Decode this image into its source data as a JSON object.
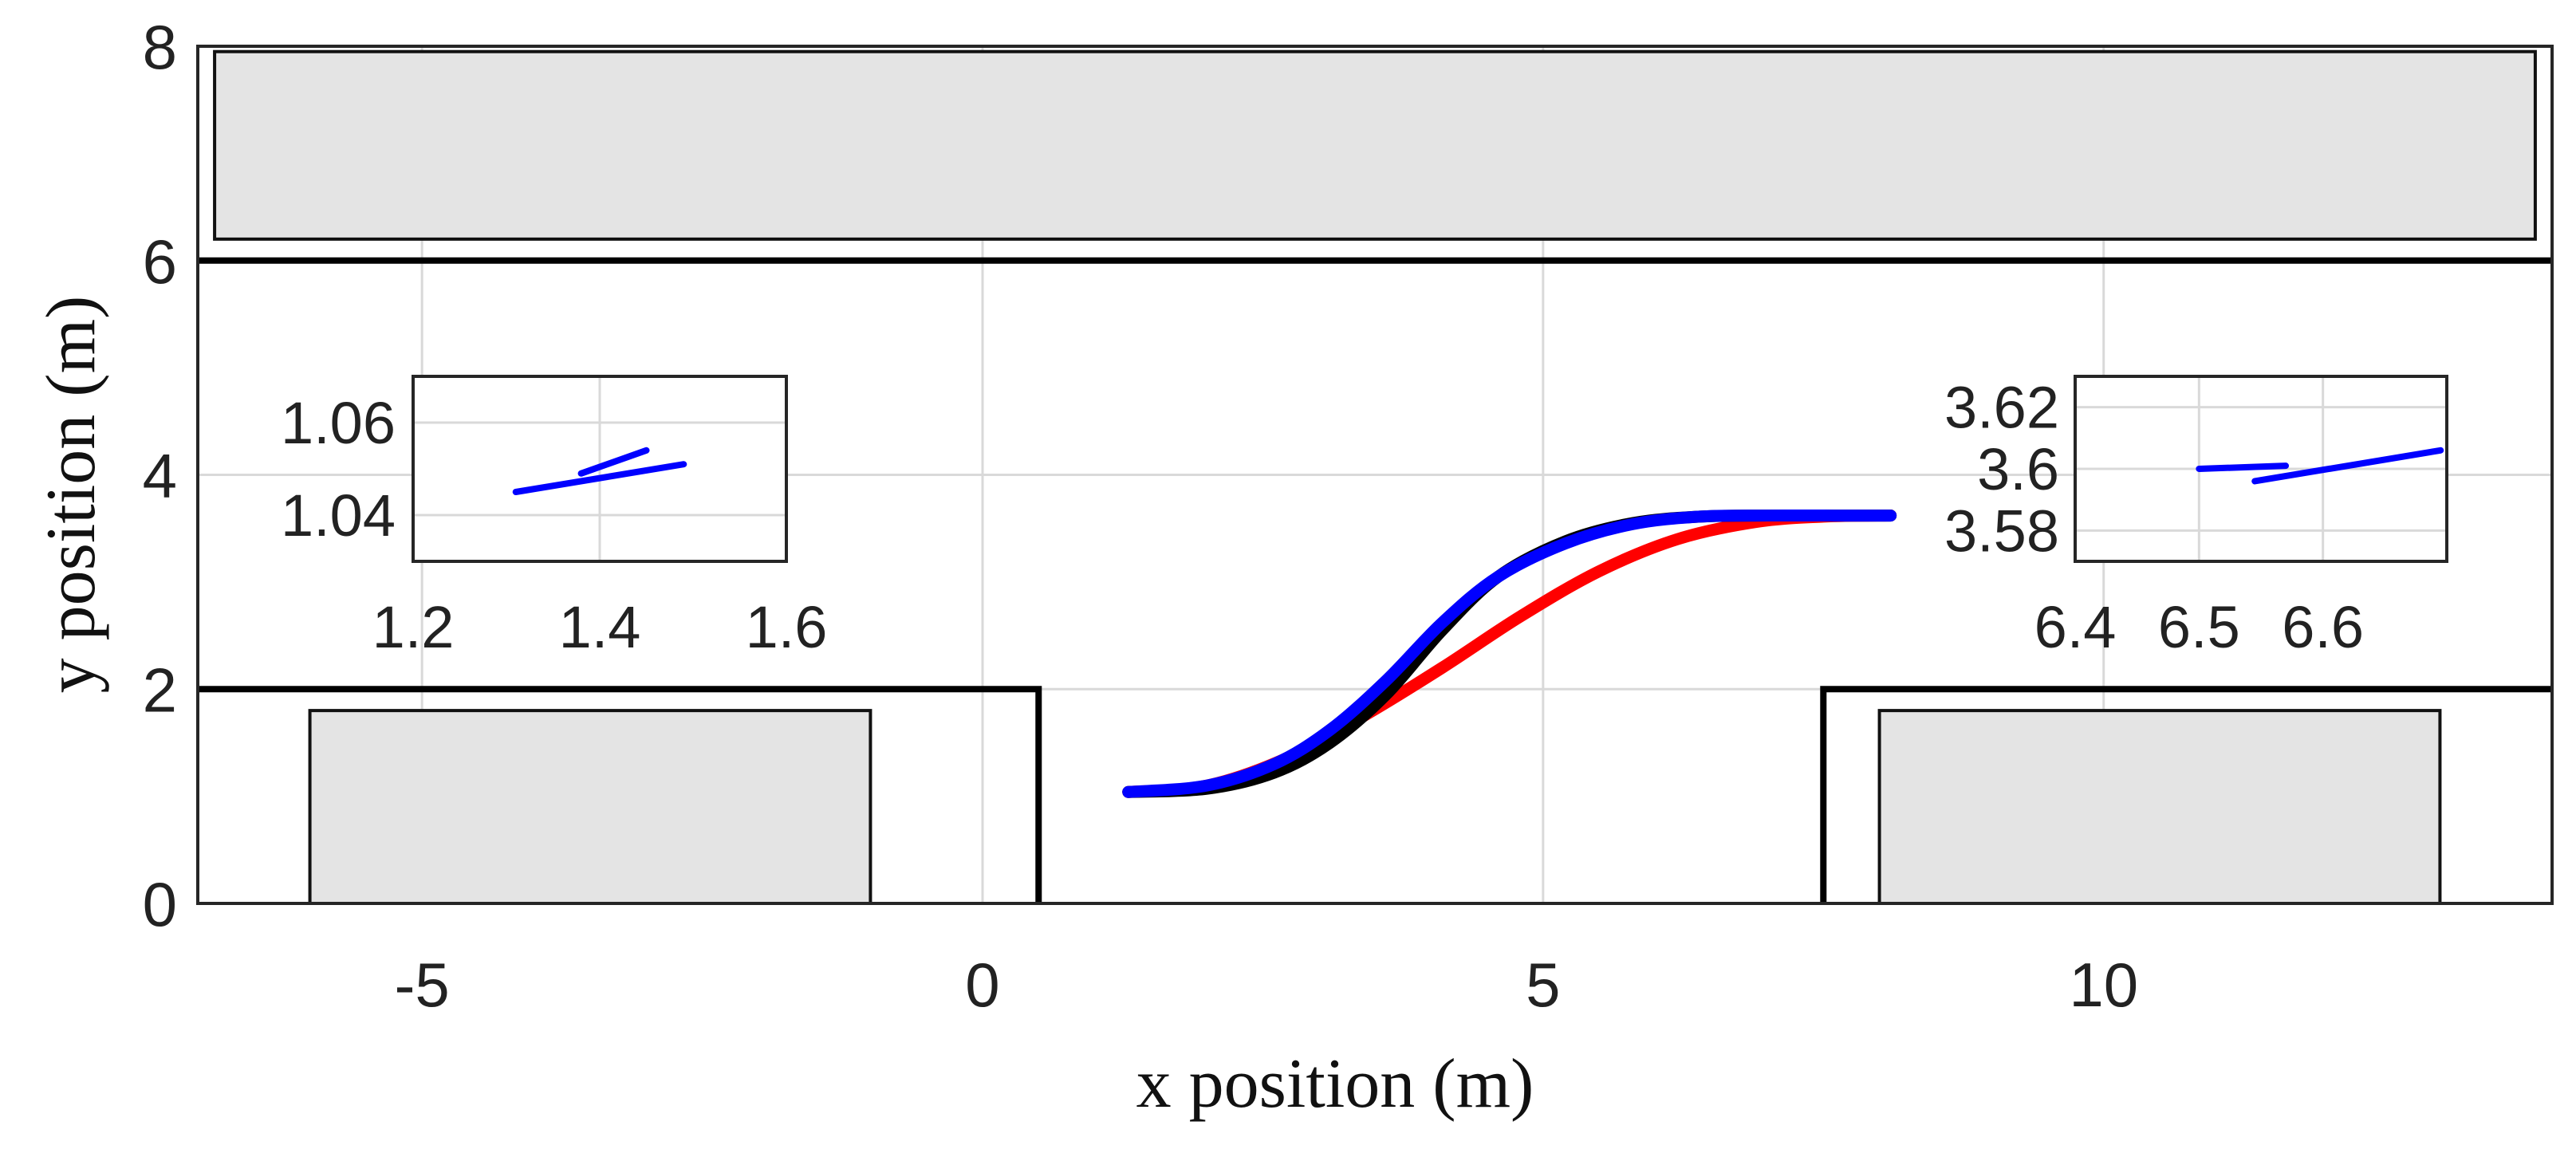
{
  "chart_data": {
    "type": "line",
    "xlabel": "x position (m)",
    "ylabel": "y position (m)",
    "xlim": [
      -7,
      14
    ],
    "ylim": [
      0,
      8
    ],
    "x_ticks": [
      -5,
      0,
      5,
      10
    ],
    "x_tick_labels": [
      "-5",
      "0",
      "5",
      "10"
    ],
    "y_ticks": [
      0,
      2,
      4,
      6,
      8
    ],
    "y_tick_labels": [
      "0",
      "2",
      "4",
      "6",
      "8"
    ],
    "grid": true,
    "obstacles": [
      {
        "x": [
          -6.85,
          13.85
        ],
        "y": [
          6.2,
          7.95
        ],
        "fill": "#e4e4e4"
      },
      {
        "x": [
          -6,
          -1
        ],
        "y": [
          0,
          1.8
        ],
        "fill": "#e4e4e4"
      },
      {
        "x": [
          8,
          13
        ],
        "y": [
          0,
          1.8
        ],
        "fill": "#e4e4e4"
      }
    ],
    "boundaries": [
      {
        "x": [
          -7,
          14
        ],
        "y": [
          6,
          6
        ]
      },
      {
        "x": [
          -7,
          0.5,
          0.5
        ],
        "y": [
          2,
          2,
          0
        ]
      },
      {
        "x": [
          7.5,
          7.5,
          14
        ],
        "y": [
          0,
          2,
          2
        ]
      }
    ],
    "series": [
      {
        "color": "#ff0000",
        "x": [
          1.3,
          2.0,
          2.7,
          3.4,
          4.1,
          4.8,
          5.5,
          6.2,
          6.9,
          7.5,
          8.1
        ],
        "y": [
          1.04,
          1.1,
          1.35,
          1.75,
          2.2,
          2.68,
          3.1,
          3.4,
          3.56,
          3.61,
          3.62
        ]
      },
      {
        "color": "#000000",
        "x": [
          1.3,
          2.0,
          2.6,
          3.1,
          3.6,
          4.1,
          4.6,
          5.2,
          5.8,
          6.4,
          7.0,
          7.6,
          8.1
        ],
        "y": [
          1.04,
          1.07,
          1.22,
          1.5,
          1.95,
          2.55,
          3.05,
          3.38,
          3.55,
          3.61,
          3.62,
          3.62,
          3.62
        ]
      },
      {
        "color": "#0000ff",
        "x": [
          1.3,
          2.0,
          2.6,
          3.1,
          3.6,
          4.1,
          4.6,
          5.2,
          5.8,
          6.4,
          7.0,
          7.6,
          8.1
        ],
        "y": [
          1.04,
          1.1,
          1.3,
          1.62,
          2.08,
          2.62,
          3.05,
          3.36,
          3.54,
          3.61,
          3.62,
          3.62,
          3.62
        ]
      }
    ],
    "insets": [
      {
        "xlim": [
          1.2,
          1.6
        ],
        "ylim": [
          1.03,
          1.07
        ],
        "x_ticks": [
          1.2,
          1.4,
          1.6
        ],
        "x_tick_labels": [
          "1.2",
          "1.4",
          "1.6"
        ],
        "y_ticks": [
          1.04,
          1.06
        ],
        "y_tick_labels": [
          "1.04",
          "1.06"
        ],
        "lines": [
          {
            "color": "#0000ff",
            "x": [
              1.31,
              1.49
            ],
            "y": [
              1.045,
              1.051
            ]
          },
          {
            "color": "#0000ff",
            "x": [
              1.38,
              1.45
            ],
            "y": [
              1.049,
              1.054
            ]
          }
        ]
      },
      {
        "xlim": [
          6.4,
          6.7
        ],
        "ylim": [
          3.57,
          3.63
        ],
        "x_ticks": [
          6.4,
          6.5,
          6.6
        ],
        "x_tick_labels": [
          "6.4",
          "6.5",
          "6.6"
        ],
        "y_ticks": [
          3.58,
          3.6,
          3.62
        ],
        "y_tick_labels": [
          "3.58",
          "3.6",
          "3.62"
        ],
        "lines": [
          {
            "color": "#0000ff",
            "x": [
              6.5,
              6.57
            ],
            "y": [
              3.6,
              3.601
            ]
          },
          {
            "color": "#0000ff",
            "x": [
              6.545,
              6.695
            ],
            "y": [
              3.596,
              3.606
            ]
          }
        ]
      }
    ]
  }
}
